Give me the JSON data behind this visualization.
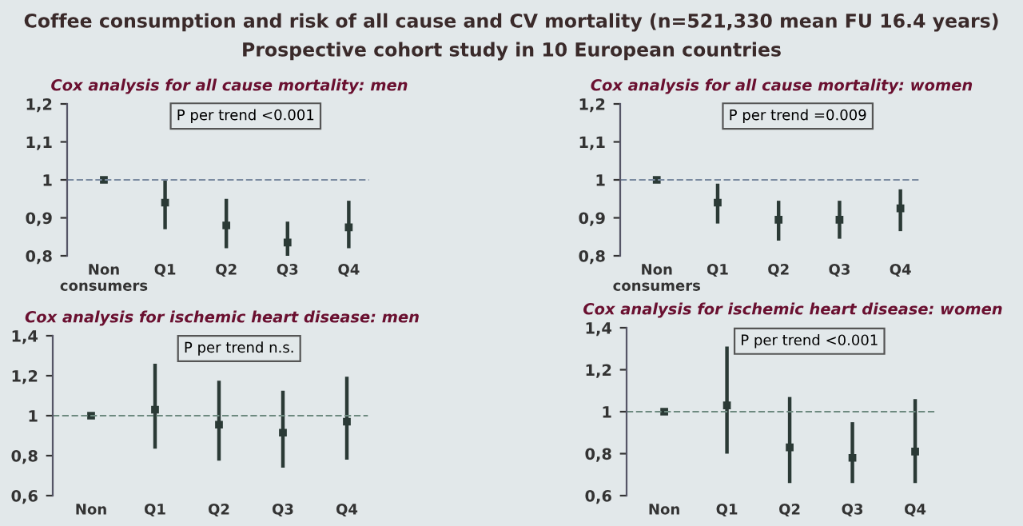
{
  "chart_data": [
    {
      "type": "scatter",
      "title": "Cox analysis for all cause mortality: men",
      "categories": [
        "Non\nconsumers",
        "Q1",
        "Q2",
        "Q3",
        "Q4"
      ],
      "series": [
        {
          "color": "#2b3a36",
          "values": [
            1,
            0.94,
            0.88,
            0.835,
            0.875
          ],
          "errors": [
            null,
            [
              0.87,
              1.0
            ],
            [
              0.82,
              0.95
            ],
            [
              0.79,
              0.89
            ],
            [
              0.82,
              0.945
            ]
          ]
        }
      ],
      "ylim": [
        0.8,
        1.2
      ],
      "yticks": [
        {
          "value": 0.8,
          "label": "0,8"
        },
        {
          "value": 0.9,
          "label": "0,9"
        },
        1,
        {
          "value": 1.1,
          "label": "1,1"
        },
        {
          "value": 1.2,
          "label": "1,2"
        }
      ],
      "ref_lines": [
        {
          "axis": "y",
          "value": 1,
          "color": "#7a8aa0",
          "line_style": "dashed"
        }
      ],
      "marker": "square",
      "grid": false,
      "legend": false,
      "annotations": [
        "Coffee consumption and risk of all cause and CV mortality (n=521,330 mean FU 16.4 years)",
        "Prospective cohort study in 10 European countries",
        "P per trend <0.001"
      ]
    },
    {
      "type": "scatter",
      "title": "Cox analysis for all cause mortality: women",
      "categories": [
        "Non\nconsumers",
        "Q1",
        "Q2",
        "Q3",
        "Q4"
      ],
      "series": [
        {
          "color": "#2b3a36",
          "values": [
            1,
            0.94,
            0.895,
            0.895,
            0.925
          ],
          "errors": [
            null,
            [
              0.885,
              0.99
            ],
            [
              0.84,
              0.945
            ],
            [
              0.845,
              0.945
            ],
            [
              0.865,
              0.975
            ]
          ]
        }
      ],
      "ylim": [
        0.8,
        1.2
      ],
      "yticks": [
        {
          "value": 0.8,
          "label": "0,8"
        },
        {
          "value": 0.9,
          "label": "0,9"
        },
        1,
        {
          "value": 1.1,
          "label": "1,1"
        },
        {
          "value": 1.2,
          "label": "1,2"
        }
      ],
      "ref_lines": [
        {
          "axis": "y",
          "value": 1,
          "color": "#7a8aa0",
          "line_style": "dashed"
        }
      ],
      "marker": "square",
      "grid": false,
      "legend": false,
      "annotations": [
        "P per trend =0.009"
      ]
    },
    {
      "type": "scatter",
      "title": "Cox analysis for ischemic heart disease: men",
      "categories": [
        "Non",
        "Q1",
        "Q2",
        "Q3",
        "Q4"
      ],
      "series": [
        {
          "color": "#2b3a36",
          "values": [
            1,
            1.03,
            0.955,
            0.915,
            0.97
          ],
          "errors": [
            null,
            [
              0.835,
              1.26
            ],
            [
              0.775,
              1.175
            ],
            [
              0.74,
              1.125
            ],
            [
              0.78,
              1.195
            ]
          ]
        }
      ],
      "ylim": [
        0.6,
        1.4
      ],
      "yticks": [
        {
          "value": 0.6,
          "label": "0,6"
        },
        {
          "value": 0.8,
          "label": "0,8"
        },
        1,
        {
          "value": 1.2,
          "label": "1,2"
        },
        {
          "value": 1.4,
          "label": "1,4"
        }
      ],
      "ref_lines": [
        {
          "axis": "y",
          "value": 1,
          "color": "#6e8a80",
          "line_style": "dashed"
        }
      ],
      "marker": "square",
      "grid": false,
      "legend": false,
      "annotations": [
        "P per trend n.s."
      ]
    },
    {
      "type": "scatter",
      "title": "Cox analysis for ischemic heart disease: women",
      "categories": [
        "Non",
        "Q1",
        "Q2",
        "Q3",
        "Q4"
      ],
      "series": [
        {
          "color": "#2b3a36",
          "values": [
            1,
            1.03,
            0.83,
            0.78,
            0.81
          ],
          "errors": [
            null,
            [
              0.8,
              1.31
            ],
            [
              0.66,
              1.07
            ],
            [
              0.66,
              0.95
            ],
            [
              0.66,
              1.06
            ]
          ]
        }
      ],
      "ylim": [
        0.6,
        1.4
      ],
      "yticks": [
        {
          "value": 0.6,
          "label": "0,6"
        },
        {
          "value": 0.8,
          "label": "0,8"
        },
        1,
        {
          "value": 1.2,
          "label": "1,2"
        },
        {
          "value": 1.4,
          "label": "1,4"
        }
      ],
      "ref_lines": [
        {
          "axis": "y",
          "value": 1,
          "color": "#6e8a80",
          "line_style": "dashed"
        }
      ],
      "marker": "square",
      "grid": false,
      "legend": false,
      "annotations": [
        "P per trend <0.001"
      ]
    }
  ]
}
